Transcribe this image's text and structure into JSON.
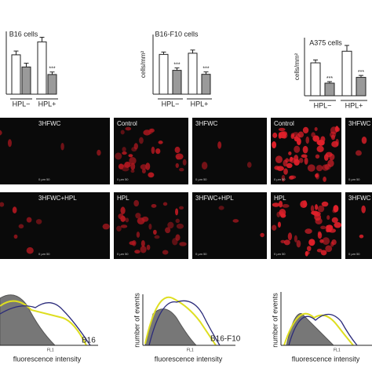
{
  "chart_data": [
    {
      "type": "bar",
      "title": "B16 cells",
      "categories": [
        "HPL−",
        "HPL+"
      ],
      "series": [
        {
          "color": "#ffffff",
          "values": [
            940,
            1250
          ],
          "errors": [
            90,
            110
          ]
        },
        {
          "color": "#9a9a9a",
          "values": [
            650,
            470
          ],
          "errors": [
            90,
            60
          ],
          "value_labels": [
            null,
            "***"
          ]
        }
      ],
      "ylim": [
        0,
        1500
      ]
    },
    {
      "type": "bar",
      "title": "B16-F10 cells",
      "ylabel": "cells/mm²",
      "categories": [
        "HPL−",
        "HPL+"
      ],
      "series": [
        {
          "color": "#ffffff",
          "values": [
            1000,
            1030
          ],
          "errors": [
            60,
            80
          ]
        },
        {
          "color": "#9a9a9a",
          "values": [
            600,
            500
          ],
          "errors": [
            60,
            60
          ],
          "value_labels": [
            "***",
            "***"
          ]
        }
      ],
      "ylim": [
        0,
        1500
      ]
    },
    {
      "type": "bar",
      "title": "A375 cells",
      "ylabel": "cells/mm²",
      "categories": [
        "HPL−",
        "HPL+"
      ],
      "series": [
        {
          "color": "#ffffff",
          "values": [
            1700,
            2300
          ],
          "errors": [
            150,
            300
          ]
        },
        {
          "color": "#9a9a9a",
          "values": [
            650,
            950
          ],
          "errors": [
            80,
            100
          ],
          "value_labels": [
            "***",
            "***"
          ]
        }
      ],
      "ylim": [
        0,
        3000
      ]
    }
  ],
  "micrographs": {
    "labels": [
      "3HFWC",
      "3HFWC+HPL",
      "Control",
      "3HFWC",
      "HPL",
      "3HFWC+HPL",
      "Control",
      "3HFWC",
      "HPL",
      "3HFWC"
    ],
    "scale": "0    µm    50"
  },
  "histograms": {
    "xlabel": "fluorescence intensity",
    "ylabel": "number of events",
    "axis": "FL1",
    "labels": [
      "B16",
      "B16-F10"
    ]
  }
}
